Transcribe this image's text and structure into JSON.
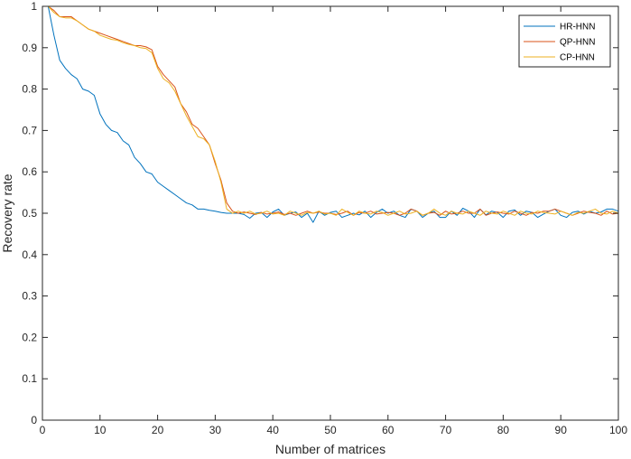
{
  "chart_data": {
    "type": "line",
    "xlabel": "Number of matrices",
    "ylabel": "Recovery rate",
    "xlim": [
      0,
      100
    ],
    "ylim": [
      0,
      1
    ],
    "xticks": [
      0,
      10,
      20,
      30,
      40,
      50,
      60,
      70,
      80,
      90,
      100
    ],
    "yticks": [
      0,
      0.1,
      0.2,
      0.3,
      0.4,
      0.5,
      0.6,
      0.7,
      0.8,
      0.9,
      1
    ],
    "xtick_labels": [
      "0",
      "10",
      "20",
      "30",
      "40",
      "50",
      "60",
      "70",
      "80",
      "90",
      "100"
    ],
    "ytick_labels": [
      "0",
      "0.1",
      "0.2",
      "0.3",
      "0.4",
      "0.5",
      "0.6",
      "0.7",
      "0.8",
      "0.9",
      "1"
    ],
    "grid": false,
    "legend_position": "top-right",
    "x": [
      1,
      2,
      3,
      4,
      5,
      6,
      7,
      8,
      9,
      10,
      11,
      12,
      13,
      14,
      15,
      16,
      17,
      18,
      19,
      20,
      21,
      22,
      23,
      24,
      25,
      26,
      27,
      28,
      29,
      30,
      31,
      32,
      33,
      34,
      35,
      36,
      37,
      38,
      39,
      40,
      41,
      42,
      43,
      44,
      45,
      46,
      47,
      48,
      49,
      50,
      51,
      52,
      53,
      54,
      55,
      56,
      57,
      58,
      59,
      60,
      61,
      62,
      63,
      64,
      65,
      66,
      67,
      68,
      69,
      70,
      71,
      72,
      73,
      74,
      75,
      76,
      77,
      78,
      79,
      80,
      81,
      82,
      83,
      84,
      85,
      86,
      87,
      88,
      89,
      90,
      91,
      92,
      93,
      94,
      95,
      96,
      97,
      98,
      99,
      100
    ],
    "series": [
      {
        "name": "HR-HNN",
        "color": "#0072BD",
        "values": [
          1.0,
          0.93,
          0.87,
          0.85,
          0.835,
          0.825,
          0.8,
          0.795,
          0.785,
          0.74,
          0.715,
          0.7,
          0.695,
          0.675,
          0.665,
          0.635,
          0.62,
          0.6,
          0.595,
          0.575,
          0.565,
          0.555,
          0.545,
          0.535,
          0.525,
          0.52,
          0.51,
          0.51,
          0.507,
          0.505,
          0.502,
          0.5,
          0.5,
          0.5,
          0.497,
          0.488,
          0.5,
          0.502,
          0.49,
          0.503,
          0.51,
          0.495,
          0.5,
          0.503,
          0.49,
          0.5,
          0.478,
          0.505,
          0.495,
          0.502,
          0.505,
          0.49,
          0.495,
          0.5,
          0.496,
          0.505,
          0.49,
          0.502,
          0.51,
          0.5,
          0.505,
          0.495,
          0.49,
          0.51,
          0.505,
          0.49,
          0.5,
          0.505,
          0.49,
          0.49,
          0.505,
          0.495,
          0.512,
          0.505,
          0.49,
          0.51,
          0.496,
          0.505,
          0.502,
          0.49,
          0.505,
          0.508,
          0.495,
          0.505,
          0.502,
          0.49,
          0.498,
          0.505,
          0.51,
          0.495,
          0.49,
          0.502,
          0.505,
          0.498,
          0.505,
          0.5,
          0.503,
          0.51,
          0.51,
          0.505
        ]
      },
      {
        "name": "QP-HNN",
        "color": "#D95319",
        "values": [
          1.0,
          0.99,
          0.975,
          0.975,
          0.975,
          0.965,
          0.955,
          0.945,
          0.94,
          0.935,
          0.93,
          0.925,
          0.92,
          0.915,
          0.91,
          0.905,
          0.905,
          0.902,
          0.895,
          0.855,
          0.835,
          0.82,
          0.805,
          0.765,
          0.745,
          0.715,
          0.705,
          0.685,
          0.665,
          0.62,
          0.58,
          0.525,
          0.505,
          0.5,
          0.503,
          0.5,
          0.497,
          0.502,
          0.498,
          0.5,
          0.503,
          0.497,
          0.5,
          0.495,
          0.5,
          0.505,
          0.5,
          0.503,
          0.5,
          0.5,
          0.497,
          0.5,
          0.505,
          0.495,
          0.502,
          0.5,
          0.505,
          0.498,
          0.5,
          0.502,
          0.5,
          0.495,
          0.5,
          0.51,
          0.505,
          0.495,
          0.5,
          0.502,
          0.495,
          0.505,
          0.498,
          0.5,
          0.505,
          0.5,
          0.5,
          0.51,
          0.495,
          0.5,
          0.503,
          0.5,
          0.498,
          0.505,
          0.5,
          0.495,
          0.502,
          0.5,
          0.505,
          0.505,
          0.51,
          0.505,
          0.5,
          0.495,
          0.5,
          0.505,
          0.502,
          0.5,
          0.495,
          0.505,
          0.498,
          0.5
        ]
      },
      {
        "name": "CP-HNN",
        "color": "#EDB120",
        "values": [
          1.0,
          0.985,
          0.975,
          0.972,
          0.972,
          0.965,
          0.955,
          0.945,
          0.94,
          0.93,
          0.925,
          0.92,
          0.918,
          0.912,
          0.908,
          0.905,
          0.9,
          0.898,
          0.888,
          0.85,
          0.825,
          0.815,
          0.795,
          0.765,
          0.735,
          0.71,
          0.685,
          0.68,
          0.665,
          0.625,
          0.575,
          0.51,
          0.5,
          0.505,
          0.5,
          0.505,
          0.498,
          0.5,
          0.505,
          0.498,
          0.5,
          0.495,
          0.505,
          0.5,
          0.495,
          0.502,
          0.5,
          0.505,
          0.498,
          0.5,
          0.495,
          0.51,
          0.502,
          0.495,
          0.505,
          0.5,
          0.498,
          0.505,
          0.502,
          0.495,
          0.5,
          0.505,
          0.498,
          0.5,
          0.505,
          0.495,
          0.5,
          0.51,
          0.5,
          0.495,
          0.505,
          0.5,
          0.498,
          0.505,
          0.5,
          0.495,
          0.505,
          0.5,
          0.498,
          0.505,
          0.5,
          0.495,
          0.505,
          0.5,
          0.498,
          0.505,
          0.502,
          0.5,
          0.498,
          0.505,
          0.5,
          0.495,
          0.502,
          0.5,
          0.505,
          0.51,
          0.5,
          0.498,
          0.505,
          0.5
        ]
      }
    ]
  }
}
